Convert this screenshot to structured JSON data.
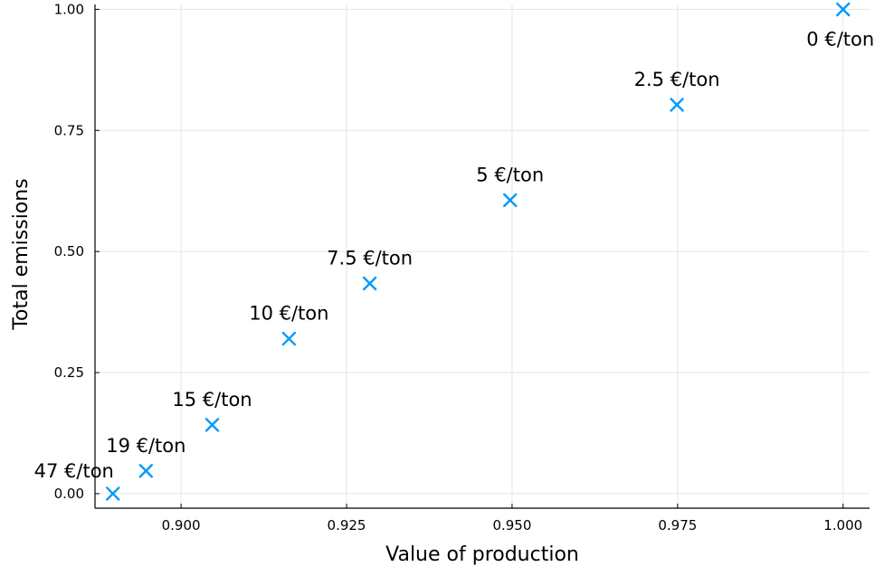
{
  "chart_data": {
    "type": "scatter",
    "xlabel": "Value of production",
    "ylabel": "Total emissions",
    "xlim": [
      0.887,
      1.004
    ],
    "ylim": [
      -0.03,
      1.01
    ],
    "xticks": [
      0.9,
      0.925,
      0.95,
      0.975,
      1.0
    ],
    "xtick_labels": [
      "0.900",
      "0.925",
      "0.950",
      "0.975",
      "1.000"
    ],
    "yticks": [
      0.0,
      0.25,
      0.5,
      0.75,
      1.0
    ],
    "ytick_labels": [
      "0.00",
      "0.25",
      "0.50",
      "0.75",
      "1.00"
    ],
    "grid": true,
    "legend": "none",
    "marker": "x",
    "color": "#009AFA",
    "points": [
      {
        "x": 1.0,
        "y": 1.0,
        "label": "0 €/ton",
        "label_pos": "below"
      },
      {
        "x": 0.9749,
        "y": 0.803,
        "label": "2.5 €/ton",
        "label_pos": "above"
      },
      {
        "x": 0.9497,
        "y": 0.606,
        "label": "5 €/ton",
        "label_pos": "above"
      },
      {
        "x": 0.9285,
        "y": 0.434,
        "label": "7.5 €/ton",
        "label_pos": "above"
      },
      {
        "x": 0.9163,
        "y": 0.32,
        "label": "10 €/ton",
        "label_pos": "above"
      },
      {
        "x": 0.9047,
        "y": 0.142,
        "label": "15 €/ton",
        "label_pos": "above"
      },
      {
        "x": 0.8947,
        "y": 0.047,
        "label": "19 €/ton",
        "label_pos": "above"
      },
      {
        "x": 0.8897,
        "y": 0.0,
        "label": "47 €/ton",
        "label_pos": "above-left"
      }
    ]
  }
}
